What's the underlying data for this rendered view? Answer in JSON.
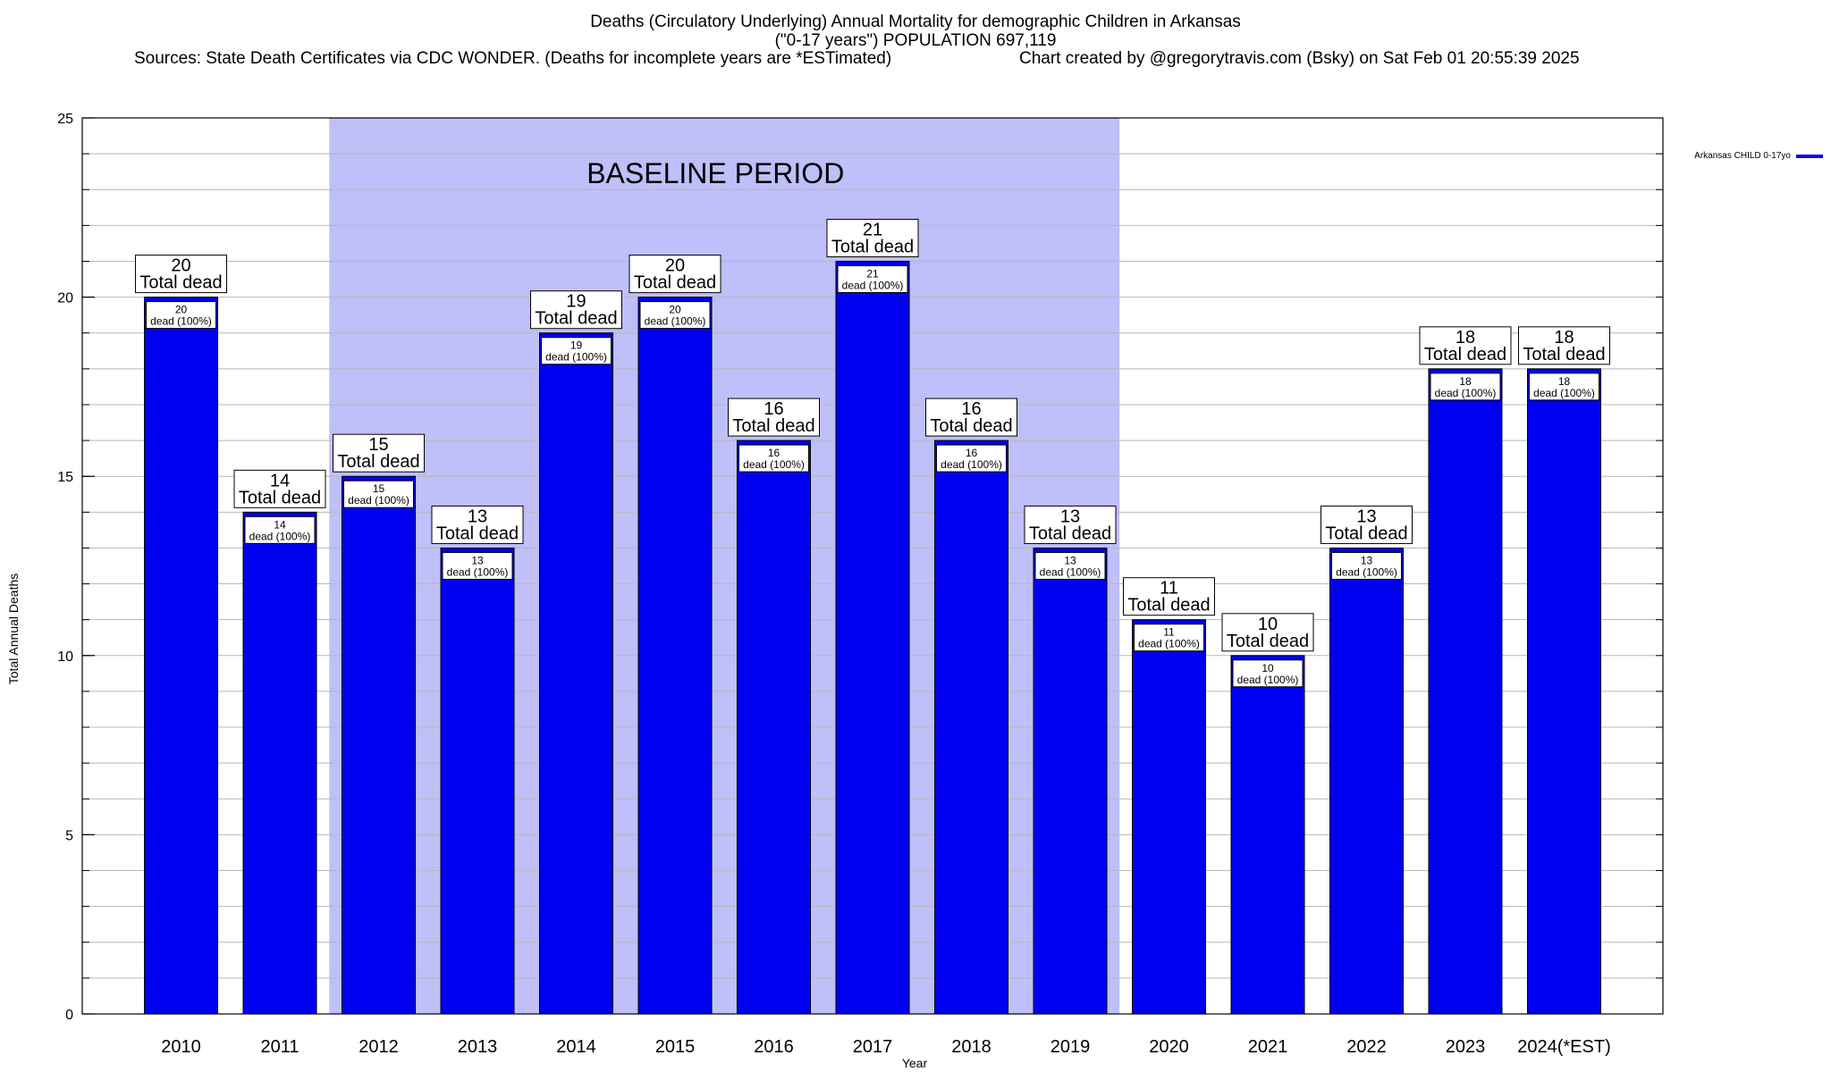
{
  "header": {
    "title_line1": "Deaths (Circulatory Underlying) Annual Mortality for demographic Children in Arkansas",
    "title_line2": "(\"0-17 years\") POPULATION 697,119",
    "sources": "Sources: State Death Certificates via CDC WONDER. (Deaths for incomplete years are *ESTimated)",
    "credit": "Chart created by @gregorytravis.com (Bsky) on Sat Feb 01 20:55:39 2025"
  },
  "chart_data": {
    "type": "bar",
    "title": "Deaths (Circulatory Underlying) Annual Mortality for demographic Children in Arkansas",
    "xlabel": "Year",
    "ylabel": "Total Annual Deaths",
    "ylim": [
      0,
      25
    ],
    "yticks": [
      0,
      5,
      10,
      15,
      20,
      25
    ],
    "grid": true,
    "categories": [
      "2010",
      "2011",
      "2012",
      "2013",
      "2014",
      "2015",
      "2016",
      "2017",
      "2018",
      "2019",
      "2020",
      "2021",
      "2022",
      "2023",
      "2024(*EST)"
    ],
    "series": [
      {
        "name": "Arkansas CHILD 0-17yo",
        "color": "#0000f0",
        "values": [
          20,
          14,
          15,
          13,
          19,
          20,
          16,
          21,
          16,
          13,
          11,
          10,
          13,
          18,
          18
        ]
      }
    ],
    "total_label": "Total dead",
    "inner_label_suffix": "dead (100%)",
    "baseline": {
      "label": "BASELINE PERIOD",
      "from": "2012",
      "to": "2019",
      "color": "#bfbff9"
    },
    "legend": {
      "placement": "top-right outside",
      "entries": [
        "Arkansas CHILD 0-17yo"
      ]
    }
  }
}
